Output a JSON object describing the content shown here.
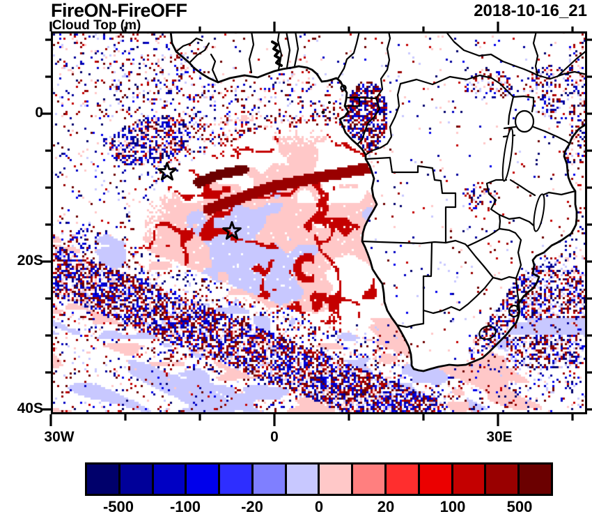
{
  "header": {
    "title": "FireON-FireOFF",
    "subtitle": "Cloud Top (m)",
    "datetime": "2018-10-16_21"
  },
  "axes": {
    "y_tick_labels": [
      "0",
      "20S",
      "40S"
    ],
    "x_tick_labels": [
      "30W",
      "0",
      "30E"
    ]
  },
  "colorbar": {
    "labels": [
      "-500",
      "-100",
      "-20",
      "0",
      "20",
      "100",
      "500"
    ],
    "levels": [
      -500,
      -200,
      -100,
      -50,
      -20,
      -10,
      0,
      10,
      20,
      50,
      100,
      200,
      500
    ],
    "colors": [
      "#00006B",
      "#000099",
      "#0000C4",
      "#0000EB",
      "#2E2EFF",
      "#7F7FFF",
      "#C8C8FF",
      "#FFC8C8",
      "#FF7F7F",
      "#FF2E2E",
      "#EB0000",
      "#C40000",
      "#990000",
      "#6B0000"
    ]
  },
  "chart_data": {
    "type": "heatmap",
    "title": "FireON-FireOFF",
    "subtitle": "Cloud Top (m)",
    "timestamp": "2018-10-16_21",
    "units": "m",
    "projection": "cylindrical lat-lon map of the South Atlantic and Southern Africa",
    "lon_range_deg": [
      -30,
      42
    ],
    "lat_range_deg": [
      -40.7,
      11.1
    ],
    "x_tick_labels": [
      "30W",
      "0",
      "30E"
    ],
    "y_tick_labels": [
      "0",
      "20S",
      "40S"
    ],
    "colorbar": {
      "levels": [
        -500,
        -200,
        -100,
        -50,
        -20,
        -10,
        0,
        10,
        20,
        50,
        100,
        200,
        500
      ],
      "labeled_levels": [
        -500,
        -100,
        -20,
        0,
        20,
        100,
        500
      ],
      "colors": [
        "#00006B",
        "#000099",
        "#0000C4",
        "#0000EB",
        "#2E2EFF",
        "#7F7FFF",
        "#C8C8FF",
        "#FFC8C8",
        "#FF7F7F",
        "#FF2E2E",
        "#EB0000",
        "#C40000",
        "#990000",
        "#6B0000"
      ],
      "orientation": "horizontal",
      "position": "bottom"
    },
    "markers": [
      {
        "shape": "star",
        "lon_deg": -14.4,
        "lat_deg": -7.9
      },
      {
        "shape": "star",
        "lon_deg": -5.7,
        "lat_deg": -15.9
      }
    ],
    "regions": [
      "large smooth pale-blue (-20..0 m) stratocumulus deck with pale-pink (0..20 m) swirls and dark-red (>100 m) filament arcs centered near 15S, 0E off Angola/Namibia",
      "dense speckled storm-track band of strong negative (<-100 m) and strong positive (>100 m) cells running diagonally from 20S at 30W toward 40S, 15E",
      "scattered mixed-sign speckle over the tropical Atlantic north of the equator with a dense negative patch near 5S 17W",
      "dense mixed cluster along the Gabon/Congo coast near the equator",
      "streaky pale pink/blue bands with speckle across the far South Atlantic and southwest Indian Ocean",
      "dense mixed speckle over the Mozambique Channel and along the South Africa east coast",
      "sparse speckle over the African interior, denser over East Africa near 35-40E",
      "mostly white (no difference) over most land areas"
    ]
  }
}
